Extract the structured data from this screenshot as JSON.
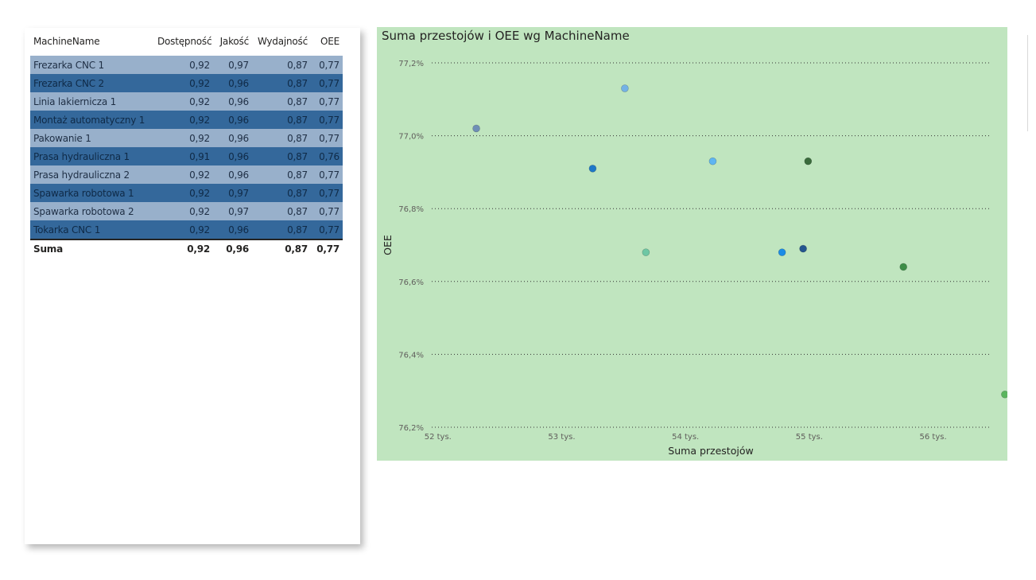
{
  "table": {
    "headers": {
      "name": "MachineName",
      "availability": "Dostępność",
      "quality": "Jakość",
      "performance": "Wydajność",
      "oee": "OEE"
    },
    "rows": [
      {
        "name": "Frezarka CNC 1",
        "availability": "0,92",
        "quality": "0,97",
        "performance": "0,87",
        "oee": "0,77"
      },
      {
        "name": "Frezarka CNC 2",
        "availability": "0,92",
        "quality": "0,96",
        "performance": "0,87",
        "oee": "0,77"
      },
      {
        "name": "Linia lakiernicza 1",
        "availability": "0,92",
        "quality": "0,96",
        "performance": "0,87",
        "oee": "0,77"
      },
      {
        "name": "Montaż automatyczny 1",
        "availability": "0,92",
        "quality": "0,96",
        "performance": "0,87",
        "oee": "0,77"
      },
      {
        "name": "Pakowanie 1",
        "availability": "0,92",
        "quality": "0,96",
        "performance": "0,87",
        "oee": "0,77"
      },
      {
        "name": "Prasa hydrauliczna 1",
        "availability": "0,91",
        "quality": "0,96",
        "performance": "0,87",
        "oee": "0,76"
      },
      {
        "name": "Prasa hydrauliczna 2",
        "availability": "0,92",
        "quality": "0,96",
        "performance": "0,87",
        "oee": "0,77"
      },
      {
        "name": "Spawarka robotowa 1",
        "availability": "0,92",
        "quality": "0,97",
        "performance": "0,87",
        "oee": "0,77"
      },
      {
        "name": "Spawarka robotowa 2",
        "availability": "0,92",
        "quality": "0,97",
        "performance": "0,87",
        "oee": "0,77"
      },
      {
        "name": "Tokarka CNC 1",
        "availability": "0,92",
        "quality": "0,96",
        "performance": "0,87",
        "oee": "0,77"
      }
    ],
    "total": {
      "name": "Suma",
      "availability": "0,92",
      "quality": "0,96",
      "performance": "0,87",
      "oee": "0,77"
    }
  },
  "chart_data": {
    "type": "scatter",
    "title": "Suma przestojów i OEE wg MachineName",
    "xlabel": "Suma przestojów",
    "ylabel": "OEE",
    "xlim": [
      51950,
      56600
    ],
    "ylim": [
      76.2,
      77.2
    ],
    "x_ticks": [
      {
        "value": 52000,
        "label": "52 tys."
      },
      {
        "value": 53000,
        "label": "53 tys."
      },
      {
        "value": 54000,
        "label": "54 tys."
      },
      {
        "value": 55000,
        "label": "55 tys."
      },
      {
        "value": 56000,
        "label": "56 tys."
      }
    ],
    "y_ticks": [
      {
        "value": 76.2,
        "label": "76,2%"
      },
      {
        "value": 76.4,
        "label": "76,4%"
      },
      {
        "value": 76.6,
        "label": "76,6%"
      },
      {
        "value": 76.8,
        "label": "76,8%"
      },
      {
        "value": 77.0,
        "label": "77,0%"
      },
      {
        "value": 77.2,
        "label": "77,2%"
      }
    ],
    "grid": "horizontal dotted",
    "background": "#c0e5bf",
    "points": [
      {
        "x": 52310,
        "y": 77.02,
        "color": "#6f8fb6"
      },
      {
        "x": 53250,
        "y": 76.91,
        "color": "#1e78c8"
      },
      {
        "x": 53510,
        "y": 77.13,
        "color": "#74b2e6"
      },
      {
        "x": 53680,
        "y": 76.68,
        "color": "#6ec7a4"
      },
      {
        "x": 54220,
        "y": 76.93,
        "color": "#5fb5f2"
      },
      {
        "x": 54780,
        "y": 76.68,
        "color": "#1b8ce6"
      },
      {
        "x": 54950,
        "y": 76.69,
        "color": "#24568f"
      },
      {
        "x": 54990,
        "y": 76.93,
        "color": "#3a6b3c"
      },
      {
        "x": 55760,
        "y": 76.64,
        "color": "#3d8d47"
      },
      {
        "x": 56580,
        "y": 76.29,
        "color": "#5bb55f"
      }
    ]
  }
}
